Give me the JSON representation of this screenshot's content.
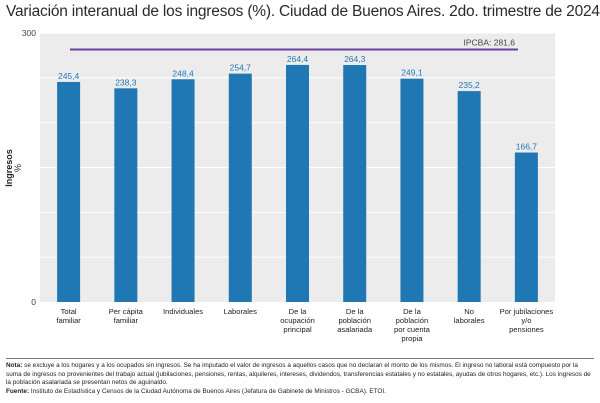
{
  "title": "Variación interanual de los ingresos (%). Ciudad de Buenos Aires. 2do. trimestre de 2024",
  "colors": {
    "bar": "#1f77b4",
    "value_label": "#1f77b4",
    "plot_bg": "#ececec",
    "gridline": "#ffffff",
    "reference_line": "#6b3fa0"
  },
  "chart_data": {
    "type": "bar",
    "title": "Variación interanual de los ingresos (%). Ciudad de Buenos Aires. 2do. trimestre de 2024",
    "xlabel": "",
    "ylabel": "Ingresos",
    "ylabel_unit": "%",
    "ylim": [
      0,
      300
    ],
    "y_tick_labels": [
      "0",
      "300"
    ],
    "grid": true,
    "categories": [
      "Total familiar",
      "Per cápita familiar",
      "Individuales",
      "Laborales",
      "De la ocupación principal",
      "De la población asalariada",
      "De la población por cuenta propia",
      "No laborales",
      "Por jubilaciones y/o pensiones"
    ],
    "category_label_lines": [
      [
        "Total",
        "familiar"
      ],
      [
        "Per cápita",
        "familiar"
      ],
      [
        "Individuales"
      ],
      [
        "Laborales"
      ],
      [
        "De la",
        "ocupación",
        "principal"
      ],
      [
        "De la",
        "población",
        "asalariada"
      ],
      [
        "De la",
        "población",
        "por cuenta",
        "propia"
      ],
      [
        "No",
        "laborales"
      ],
      [
        "Por jubilaciones",
        "y/o",
        "pensiones"
      ]
    ],
    "values": [
      245.4,
      238.3,
      248.4,
      254.7,
      264.4,
      264.3,
      249.1,
      235.2,
      166.7
    ],
    "value_labels": [
      "245,4",
      "238,3",
      "248,4",
      "254,7",
      "264,4",
      "264,3",
      "249,1",
      "235,2",
      "166,7"
    ],
    "reference_line": {
      "label": "IPCBA: 281,6",
      "value": 281.6
    }
  },
  "footnote": {
    "note_label": "Nota:",
    "note_text": " se excluye a los hogares y a los ocupados sin ingresos. Se ha imputado el valor de ingresos a aquellos casos que no declaran el monto de los mismos. El ingreso no laboral está compuesto por la suma de ingresos no provenientes del trabajo actual (jubilaciones, pensiones, rentas, alquileres, intereses, dividendos, transferencias estatales y no estatales, ayudas de otros hogares, etc.). Los ingresos de la población asalariada se presentan netos de aguinaldo.",
    "source_label": "Fuente:",
    "source_text": " Instituto de Estadística y Censos de la Ciudad Autónoma de Buenos Aires (Jefatura de Gabinete de Ministros - GCBA). ETOI."
  }
}
